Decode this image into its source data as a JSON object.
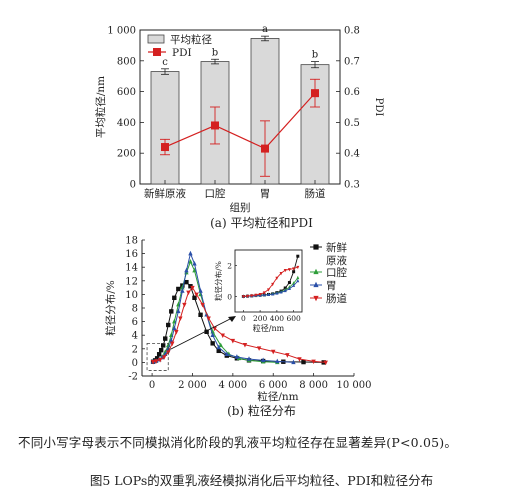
{
  "chart_data": [
    {
      "type": "bar",
      "panel_label": "(a) 平均粒径和PDI",
      "categories": [
        "新鲜原液",
        "口腔",
        "胃",
        "肠道"
      ],
      "xlabel": "组别",
      "ylabel": "平均粒径/nm",
      "ylabel2": "PDI",
      "ylim": [
        0,
        1000
      ],
      "ylim2": [
        0.3,
        0.8
      ],
      "yticks": [
        "0",
        "200",
        "400",
        "600",
        "800",
        "1 000"
      ],
      "yticks2": [
        "0.3",
        "0.4",
        "0.5",
        "0.6",
        "0.7",
        "0.8"
      ],
      "series": [
        {
          "name": "平均粒径",
          "kind": "bar",
          "axis": "left",
          "color": "#d9d9d9",
          "values": [
            730,
            795,
            945,
            775
          ],
          "errors": [
            18,
            15,
            15,
            20
          ],
          "letters": [
            "c",
            "b",
            "a",
            "b"
          ]
        },
        {
          "name": "PDI",
          "kind": "line",
          "axis": "right",
          "color": "#d42020",
          "values": [
            0.42,
            0.49,
            0.415,
            0.595
          ],
          "errors": [
            0.025,
            0.06,
            0.09,
            0.045
          ]
        }
      ],
      "legend_position": "top-left"
    },
    {
      "type": "line",
      "panel_label": "(b) 粒径分布",
      "xlabel": "粒径/nm",
      "ylabel": "粒径分布/%",
      "xlim": [
        -500,
        10000
      ],
      "ylim": [
        -2,
        18
      ],
      "xticks": [
        "0",
        "2 000",
        "4 000",
        "6 000",
        "8 000",
        "10 000"
      ],
      "yticks": [
        "-2",
        "0",
        "2",
        "4",
        "6",
        "8",
        "10",
        "12",
        "14",
        "16",
        "18"
      ],
      "series": [
        {
          "name": "新鲜原液",
          "color": "#111111",
          "marker": "square",
          "x": [
            50,
            150,
            250,
            350,
            450,
            550,
            650,
            800,
            950,
            1100,
            1300,
            1500,
            1700,
            1900,
            2100,
            2400,
            2700,
            3000,
            3300,
            3700,
            4200,
            4800,
            5500,
            6500,
            7500,
            8500
          ],
          "y": [
            0.1,
            0.3,
            0.6,
            1.2,
            1.8,
            2.5,
            3.5,
            5.5,
            7.5,
            9.5,
            10.8,
            11.3,
            11.8,
            11.2,
            9.5,
            7.0,
            4.5,
            2.8,
            1.7,
            1.0,
            0.6,
            0.3,
            0.2,
            0.1,
            0.05,
            0.0
          ]
        },
        {
          "name": "口腔",
          "color": "#2e9e3a",
          "marker": "triangle",
          "x": [
            50,
            200,
            350,
            500,
            650,
            800,
            950,
            1100,
            1300,
            1500,
            1700,
            1900,
            2100,
            2400,
            2700,
            3000,
            3400,
            3800,
            4300,
            4800,
            5500,
            6200
          ],
          "y": [
            0.1,
            0.2,
            0.4,
            0.8,
            1.5,
            2.5,
            4.0,
            6.0,
            8.5,
            11.0,
            13.2,
            14.8,
            13.5,
            10.0,
            7.0,
            4.5,
            2.5,
            1.2,
            0.6,
            0.3,
            0.1,
            0.0
          ]
        },
        {
          "name": "胃",
          "color": "#2a4fa8",
          "marker": "triangle",
          "x": [
            50,
            200,
            350,
            500,
            650,
            800,
            950,
            1100,
            1300,
            1500,
            1700,
            1900,
            2100,
            2400,
            2700,
            3000,
            3300,
            3700,
            4200,
            4800,
            5500,
            6200,
            7000
          ],
          "y": [
            0.1,
            0.2,
            0.4,
            0.7,
            1.2,
            2.0,
            3.2,
            5.0,
            7.5,
            10.5,
            13.5,
            16.0,
            14.5,
            10.5,
            7.0,
            4.0,
            2.2,
            1.2,
            0.8,
            0.5,
            0.3,
            0.15,
            0.0
          ]
        },
        {
          "name": "肠道",
          "color": "#d42020",
          "marker": "triangle-down",
          "x": [
            50,
            200,
            400,
            600,
            800,
            1000,
            1200,
            1400,
            1600,
            1800,
            2000,
            2200,
            2500,
            2800,
            3100,
            3500,
            4000,
            4600,
            5300,
            6000,
            6700,
            7300,
            8000,
            8600
          ],
          "y": [
            0.1,
            0.2,
            0.4,
            0.8,
            1.5,
            2.8,
            4.5,
            6.5,
            8.5,
            10.3,
            11.0,
            10.0,
            8.5,
            6.5,
            5.0,
            4.0,
            3.2,
            2.6,
            2.1,
            1.6,
            1.1,
            0.5,
            0.15,
            0.0
          ]
        }
      ],
      "legend_position": "right",
      "inset": {
        "xlim": [
          -100,
          700
        ],
        "ylim": [
          -1,
          3
        ],
        "xticks": [
          "0",
          "200",
          "400",
          "600"
        ],
        "yticks": [
          "0",
          "2"
        ],
        "xlabel": "粒径/nm",
        "ylabel": "粒径分布/%",
        "series": [
          {
            "name": "新鲜原液",
            "color": "#111111",
            "marker": "square",
            "x": [
              0,
              50,
              100,
              150,
              200,
              250,
              300,
              350,
              400,
              450,
              500,
              550,
              600,
              650
            ],
            "y": [
              0.0,
              0.02,
              0.04,
              0.06,
              0.08,
              0.1,
              0.13,
              0.17,
              0.25,
              0.35,
              0.55,
              0.9,
              1.6,
              2.6
            ]
          },
          {
            "name": "口腔",
            "color": "#2e9e3a",
            "marker": "triangle",
            "x": [
              0,
              50,
              100,
              150,
              200,
              250,
              300,
              350,
              400,
              450,
              500,
              550,
              600,
              650
            ],
            "y": [
              0.0,
              0.02,
              0.04,
              0.05,
              0.07,
              0.09,
              0.12,
              0.16,
              0.22,
              0.3,
              0.42,
              0.6,
              0.85,
              1.2
            ]
          },
          {
            "name": "胃",
            "color": "#2a4fa8",
            "marker": "triangle",
            "x": [
              0,
              50,
              100,
              150,
              200,
              250,
              300,
              350,
              400,
              450,
              500,
              550,
              600,
              650
            ],
            "y": [
              0.0,
              0.02,
              0.03,
              0.05,
              0.07,
              0.09,
              0.11,
              0.14,
              0.2,
              0.27,
              0.36,
              0.5,
              0.7,
              1.0
            ]
          },
          {
            "name": "肠道",
            "color": "#d42020",
            "marker": "triangle-down",
            "x": [
              0,
              50,
              100,
              150,
              200,
              250,
              300,
              350,
              400,
              450,
              500,
              550,
              600,
              650
            ],
            "y": [
              0.0,
              0.03,
              0.06,
              0.1,
              0.15,
              0.25,
              0.45,
              0.8,
              1.2,
              1.5,
              1.7,
              1.75,
              1.8,
              1.9
            ]
          }
        ]
      }
    }
  ],
  "note": "不同小写字母表示不同模拟消化阶段的乳液平均粒径存在显著差异(P<0.05)。",
  "figure_caption": "图5 LOPs的双重乳液经模拟消化后平均粒径、PDI和粒径分布"
}
